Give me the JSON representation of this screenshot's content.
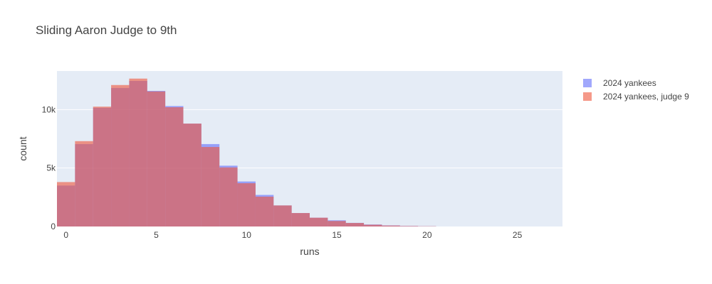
{
  "chart_data": {
    "type": "bar",
    "title": "Sliding Aaron Judge to 9th",
    "xlabel": "runs",
    "ylabel": "count",
    "xlim": [
      -0.5,
      27.5
    ],
    "ylim": [
      0,
      13300
    ],
    "bin_width": 1,
    "x_ticks": [
      0,
      5,
      10,
      15,
      20,
      25
    ],
    "x_tick_labels": [
      "0",
      "5",
      "10",
      "15",
      "20",
      "25"
    ],
    "y_ticks": [
      0,
      5000,
      10000
    ],
    "y_tick_labels": [
      "0",
      "5k",
      "10k"
    ],
    "grid": true,
    "barmode": "overlay",
    "legend_position": "top-right",
    "background": "#e5ecf6",
    "series": [
      {
        "name": "2024 yankees",
        "color": "#636efa",
        "opacity": 0.6,
        "x": [
          0,
          1,
          2,
          3,
          4,
          5,
          6,
          7,
          8,
          9,
          10,
          11,
          12,
          13,
          14,
          15,
          16,
          17,
          18,
          19,
          20
        ],
        "values": [
          3500,
          7050,
          10150,
          11850,
          12450,
          11600,
          10300,
          8800,
          7050,
          5200,
          3850,
          2700,
          1800,
          1150,
          750,
          530,
          310,
          170,
          90,
          45,
          20
        ]
      },
      {
        "name": "2024 yankees, judge 9",
        "color": "#ef553b",
        "opacity": 0.6,
        "x": [
          0,
          1,
          2,
          3,
          4,
          5,
          6,
          7,
          8,
          9,
          10,
          11,
          12,
          13,
          14,
          15,
          16,
          17,
          18,
          19,
          20
        ],
        "values": [
          3800,
          7300,
          10250,
          12100,
          12650,
          11550,
          10200,
          8800,
          6800,
          5050,
          3700,
          2550,
          1800,
          1150,
          750,
          470,
          300,
          150,
          80,
          40,
          20
        ]
      }
    ]
  }
}
